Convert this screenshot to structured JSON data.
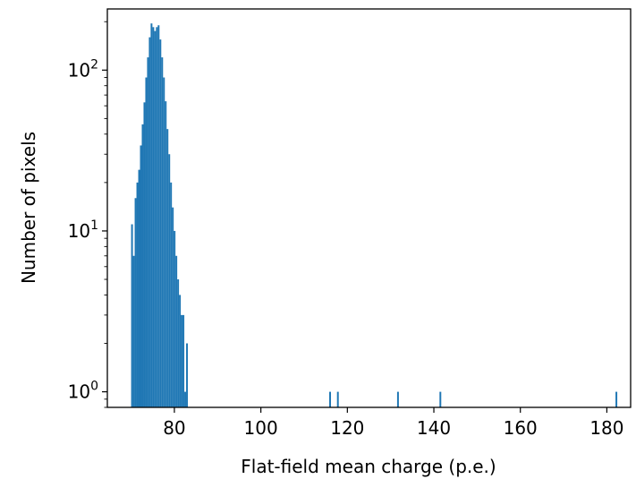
{
  "chart_data": {
    "type": "bar",
    "xlabel": "Flat-field mean charge (p.e.)",
    "ylabel": "Number of pixels",
    "xlim": [
      64.5,
      185.5
    ],
    "ylim": [
      0.8,
      240
    ],
    "yscale": "log",
    "grid": false,
    "bin_width": 0.41,
    "xticks": [
      {
        "value": 80,
        "label": "80"
      },
      {
        "value": 100,
        "label": "100"
      },
      {
        "value": 120,
        "label": "120"
      },
      {
        "value": 140,
        "label": "140"
      },
      {
        "value": 160,
        "label": "160"
      },
      {
        "value": 180,
        "label": "180"
      }
    ],
    "yticks": [
      {
        "value": 1,
        "base": "10",
        "exp": "0"
      },
      {
        "value": 10,
        "base": "10",
        "exp": "1"
      },
      {
        "value": 100,
        "base": "10",
        "exp": "2"
      }
    ],
    "bar_color": "#1f77b4",
    "bins": [
      {
        "x": 70.0,
        "count": 11
      },
      {
        "x": 70.41,
        "count": 7
      },
      {
        "x": 70.82,
        "count": 16
      },
      {
        "x": 71.23,
        "count": 20
      },
      {
        "x": 71.64,
        "count": 24
      },
      {
        "x": 72.05,
        "count": 34
      },
      {
        "x": 72.46,
        "count": 46
      },
      {
        "x": 72.87,
        "count": 63
      },
      {
        "x": 73.28,
        "count": 90
      },
      {
        "x": 73.69,
        "count": 120
      },
      {
        "x": 74.1,
        "count": 160
      },
      {
        "x": 74.51,
        "count": 195
      },
      {
        "x": 74.92,
        "count": 185
      },
      {
        "x": 75.33,
        "count": 175
      },
      {
        "x": 75.74,
        "count": 185
      },
      {
        "x": 76.15,
        "count": 190
      },
      {
        "x": 76.56,
        "count": 155
      },
      {
        "x": 76.97,
        "count": 120
      },
      {
        "x": 77.38,
        "count": 90
      },
      {
        "x": 77.79,
        "count": 64
      },
      {
        "x": 78.2,
        "count": 43
      },
      {
        "x": 78.61,
        "count": 30
      },
      {
        "x": 79.02,
        "count": 20
      },
      {
        "x": 79.43,
        "count": 14
      },
      {
        "x": 79.84,
        "count": 10
      },
      {
        "x": 80.25,
        "count": 7
      },
      {
        "x": 80.66,
        "count": 5
      },
      {
        "x": 81.07,
        "count": 4
      },
      {
        "x": 81.48,
        "count": 3
      },
      {
        "x": 81.89,
        "count": 3
      },
      {
        "x": 82.3,
        "count": 1
      },
      {
        "x": 82.71,
        "count": 2
      },
      {
        "x": 115.8,
        "count": 1
      },
      {
        "x": 117.6,
        "count": 1
      },
      {
        "x": 131.5,
        "count": 1
      },
      {
        "x": 141.3,
        "count": 1
      },
      {
        "x": 182.0,
        "count": 1
      }
    ]
  }
}
